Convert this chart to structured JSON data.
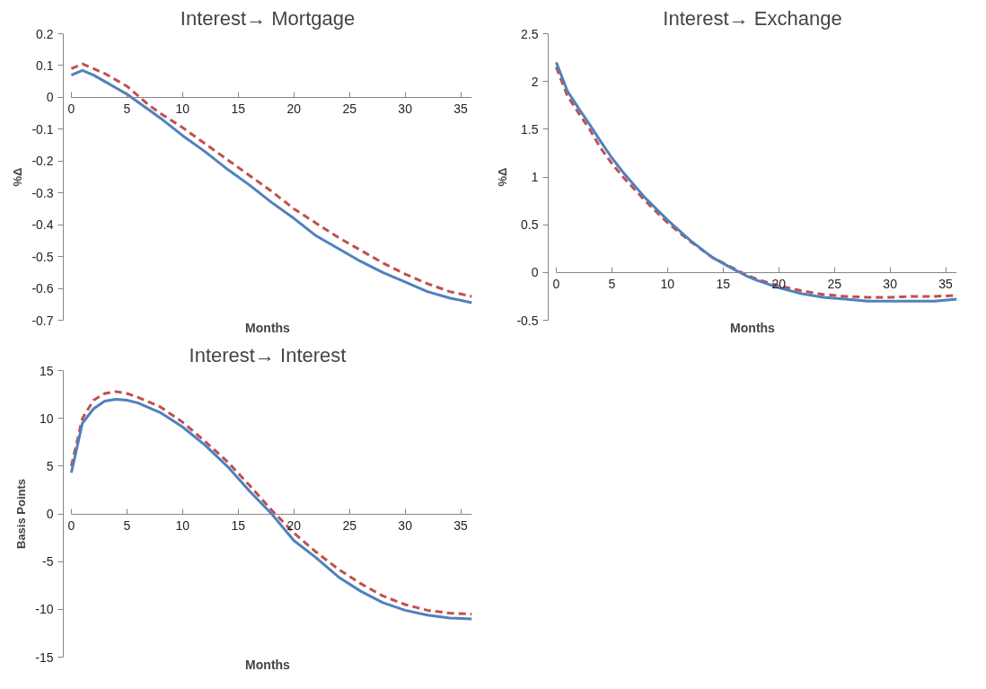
{
  "chart_data": [
    {
      "type": "line",
      "title": "Interest→ Mortgage",
      "xlabel": "Months",
      "ylabel": "%Δ",
      "xlim": [
        0,
        36
      ],
      "xticks": [
        0,
        5,
        10,
        15,
        20,
        25,
        30,
        35
      ],
      "ylim": [
        -0.7,
        0.2
      ],
      "yticks": [
        -0.7,
        -0.6,
        -0.5,
        -0.4,
        -0.3,
        -0.2,
        -0.1,
        0,
        0.1,
        0.2
      ],
      "grid": false,
      "x": [
        0,
        1,
        2,
        3,
        4,
        5,
        6,
        7,
        8,
        10,
        12,
        14,
        16,
        18,
        20,
        22,
        24,
        26,
        28,
        30,
        32,
        34,
        36
      ],
      "series": [
        {
          "color": "#4f81bd",
          "line_style": "solid",
          "values": [
            0.07,
            0.085,
            0.07,
            0.05,
            0.03,
            0.01,
            -0.015,
            -0.04,
            -0.065,
            -0.12,
            -0.17,
            -0.225,
            -0.275,
            -0.33,
            -0.38,
            -0.435,
            -0.475,
            -0.515,
            -0.55,
            -0.58,
            -0.61,
            -0.63,
            -0.645
          ]
        },
        {
          "color": "#c0504d",
          "line_style": "dashed",
          "values": [
            0.09,
            0.105,
            0.09,
            0.075,
            0.055,
            0.035,
            0.005,
            -0.025,
            -0.05,
            -0.095,
            -0.145,
            -0.195,
            -0.245,
            -0.295,
            -0.35,
            -0.395,
            -0.44,
            -0.48,
            -0.52,
            -0.555,
            -0.585,
            -0.61,
            -0.625
          ]
        }
      ]
    },
    {
      "type": "line",
      "title": "Interest→ Exchange",
      "xlabel": "Months",
      "ylabel": "%Δ",
      "xlim": [
        0,
        36
      ],
      "xticks": [
        0,
        5,
        10,
        15,
        20,
        25,
        30,
        35
      ],
      "ylim": [
        -0.5,
        2.5
      ],
      "yticks": [
        -0.5,
        0,
        0.5,
        1,
        1.5,
        2,
        2.5
      ],
      "grid": false,
      "x": [
        0,
        1,
        2,
        3,
        4,
        5,
        6,
        8,
        10,
        12,
        14,
        16,
        17,
        18,
        20,
        22,
        24,
        26,
        28,
        30,
        32,
        34,
        36
      ],
      "series": [
        {
          "color": "#4f81bd",
          "line_style": "solid",
          "values": [
            2.2,
            1.9,
            1.72,
            1.55,
            1.37,
            1.2,
            1.05,
            0.78,
            0.55,
            0.34,
            0.16,
            0.03,
            -0.03,
            -0.08,
            -0.16,
            -0.22,
            -0.26,
            -0.28,
            -0.3,
            -0.3,
            -0.3,
            -0.3,
            -0.28
          ]
        },
        {
          "color": "#c0504d",
          "line_style": "dashed",
          "values": [
            2.15,
            1.85,
            1.67,
            1.5,
            1.3,
            1.14,
            1.0,
            0.75,
            0.52,
            0.33,
            0.16,
            0.04,
            -0.02,
            -0.07,
            -0.14,
            -0.19,
            -0.23,
            -0.25,
            -0.26,
            -0.26,
            -0.25,
            -0.25,
            -0.24
          ]
        }
      ]
    },
    {
      "type": "line",
      "title": "Interest→ Interest",
      "xlabel": "Months",
      "ylabel": "Basis Points",
      "xlim": [
        0,
        36
      ],
      "xticks": [
        0,
        5,
        10,
        15,
        20,
        25,
        30,
        35
      ],
      "ylim": [
        -15,
        15
      ],
      "yticks": [
        -15,
        -10,
        -5,
        0,
        5,
        10,
        15
      ],
      "grid": false,
      "x": [
        0,
        1,
        2,
        3,
        4,
        5,
        6,
        8,
        10,
        12,
        14,
        16,
        18,
        20,
        22,
        24,
        26,
        28,
        30,
        32,
        34,
        36
      ],
      "series": [
        {
          "color": "#4f81bd",
          "line_style": "solid",
          "values": [
            4.3,
            9.5,
            11,
            11.8,
            12,
            11.9,
            11.6,
            10.6,
            9.1,
            7.2,
            5,
            2.4,
            0,
            -2.8,
            -4.6,
            -6.6,
            -8.1,
            -9.3,
            -10.1,
            -10.6,
            -10.9,
            -11
          ]
        },
        {
          "color": "#c0504d",
          "line_style": "dashed",
          "values": [
            5,
            10,
            11.9,
            12.6,
            12.8,
            12.6,
            12.2,
            11.2,
            9.6,
            7.6,
            5.5,
            3,
            0.4,
            -2,
            -4,
            -5.8,
            -7.3,
            -8.6,
            -9.5,
            -10.1,
            -10.4,
            -10.5
          ]
        }
      ]
    }
  ]
}
